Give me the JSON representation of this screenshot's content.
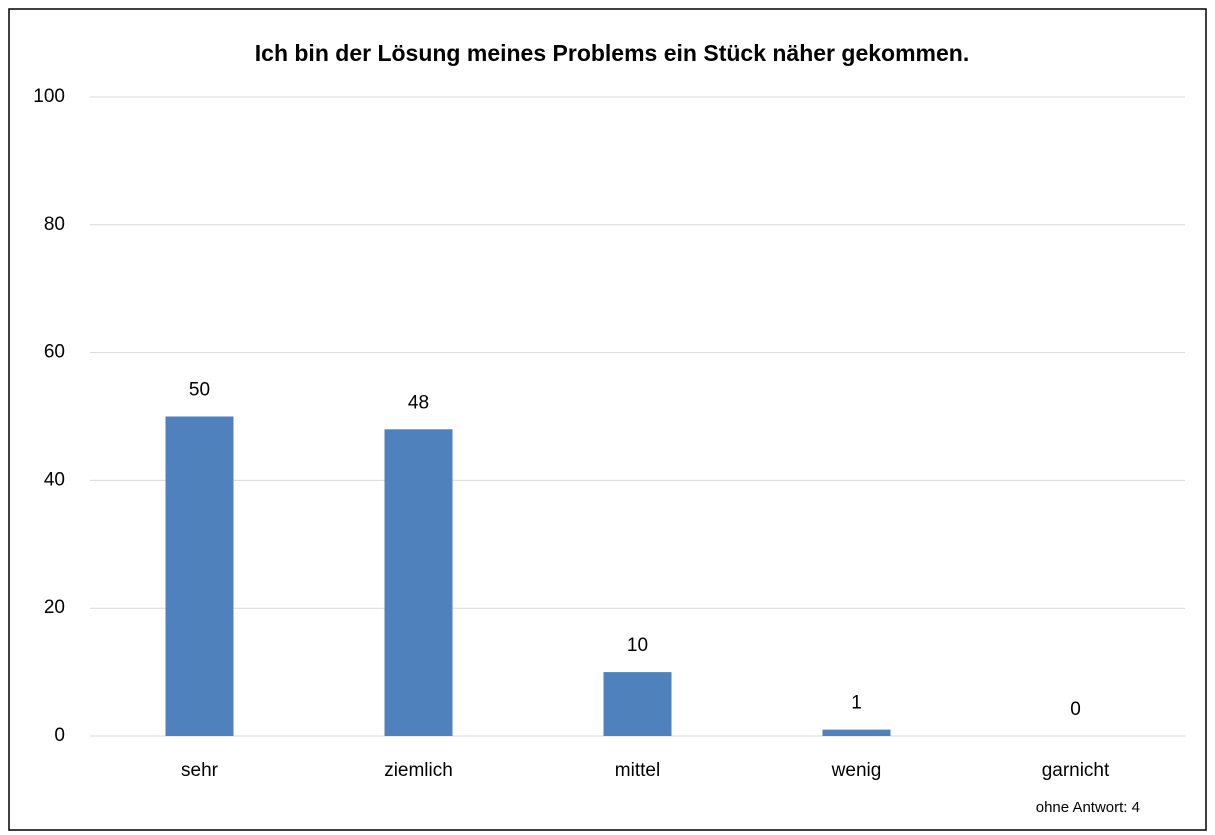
{
  "chart_data": {
    "type": "bar",
    "title": "Ich bin der Lösung meines Problems ein Stück näher gekommen.",
    "categories": [
      "sehr",
      "ziemlich",
      "mittel",
      "wenig",
      "garnicht"
    ],
    "values": [
      50,
      48,
      10,
      1,
      0
    ],
    "color": "#4f81bd",
    "ylim": [
      0,
      100
    ],
    "yticks": [
      0,
      20,
      40,
      60,
      80,
      100
    ],
    "grid": true,
    "annotation": "ohne Antwort: 4"
  }
}
